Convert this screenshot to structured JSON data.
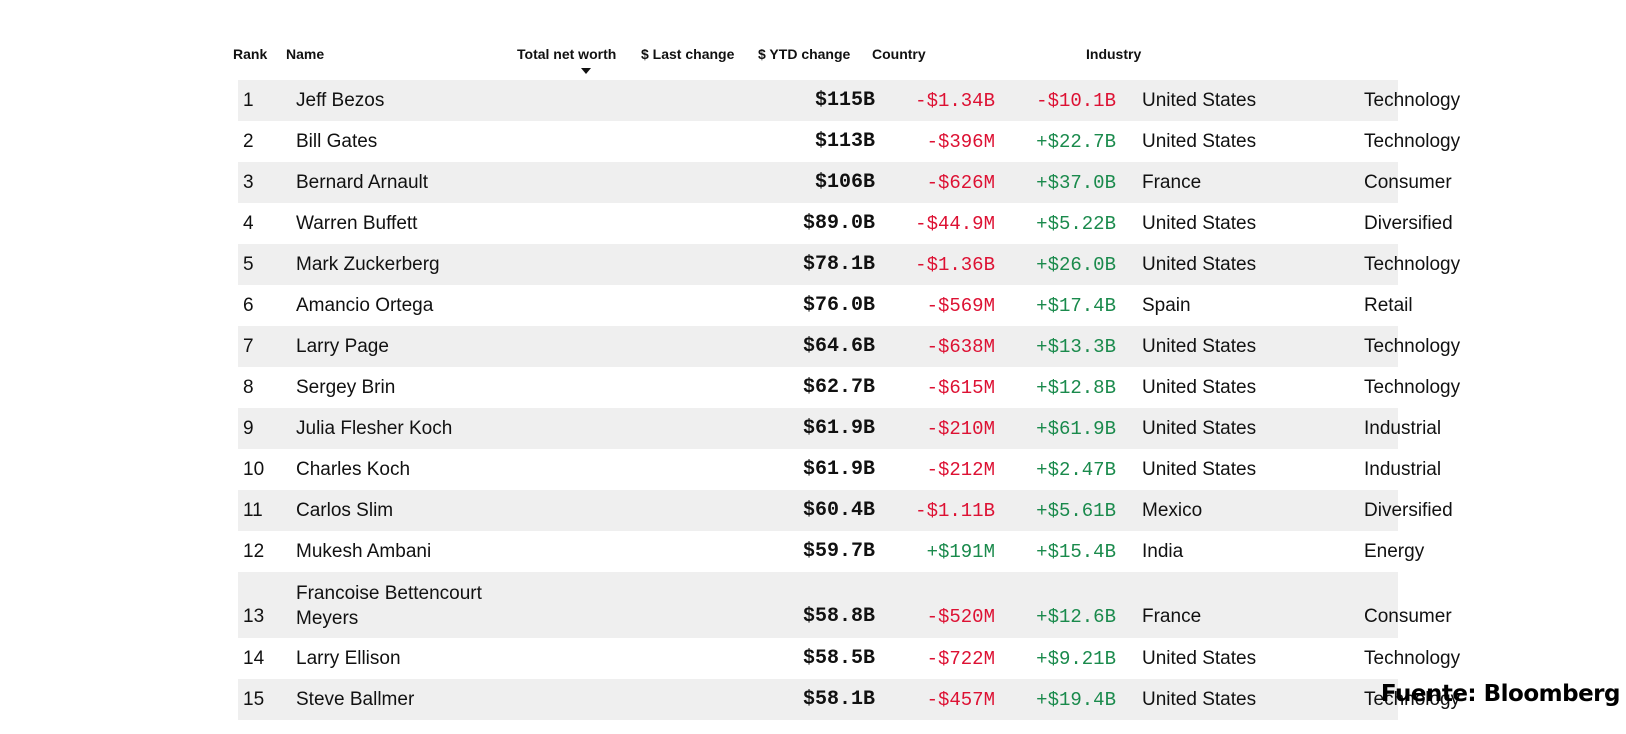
{
  "table": {
    "headers": {
      "rank": "Rank",
      "name": "Name",
      "net_worth": "Total net worth",
      "last_change": "$ Last change",
      "ytd_change": "$ YTD change",
      "country": "Country",
      "industry": "Industry"
    },
    "sorted_by": "Total net worth",
    "sort_direction": "descending",
    "rows": [
      {
        "rank": "1",
        "name": "Jeff Bezos",
        "net_worth": "$115B",
        "last_change": "-$1.34B",
        "ytd_change": "-$10.1B",
        "country": "United States",
        "industry": "Technology"
      },
      {
        "rank": "2",
        "name": "Bill Gates",
        "net_worth": "$113B",
        "last_change": "-$396M",
        "ytd_change": "+$22.7B",
        "country": "United States",
        "industry": "Technology"
      },
      {
        "rank": "3",
        "name": "Bernard Arnault",
        "net_worth": "$106B",
        "last_change": "-$626M",
        "ytd_change": "+$37.0B",
        "country": "France",
        "industry": "Consumer"
      },
      {
        "rank": "4",
        "name": "Warren Buffett",
        "net_worth": "$89.0B",
        "last_change": "-$44.9M",
        "ytd_change": "+$5.22B",
        "country": "United States",
        "industry": "Diversified"
      },
      {
        "rank": "5",
        "name": "Mark Zuckerberg",
        "net_worth": "$78.1B",
        "last_change": "-$1.36B",
        "ytd_change": "+$26.0B",
        "country": "United States",
        "industry": "Technology"
      },
      {
        "rank": "6",
        "name": "Amancio Ortega",
        "net_worth": "$76.0B",
        "last_change": "-$569M",
        "ytd_change": "+$17.4B",
        "country": "Spain",
        "industry": "Retail"
      },
      {
        "rank": "7",
        "name": "Larry Page",
        "net_worth": "$64.6B",
        "last_change": "-$638M",
        "ytd_change": "+$13.3B",
        "country": "United States",
        "industry": "Technology"
      },
      {
        "rank": "8",
        "name": "Sergey Brin",
        "net_worth": "$62.7B",
        "last_change": "-$615M",
        "ytd_change": "+$12.8B",
        "country": "United States",
        "industry": "Technology"
      },
      {
        "rank": "9",
        "name": "Julia Flesher Koch",
        "net_worth": "$61.9B",
        "last_change": "-$210M",
        "ytd_change": "+$61.9B",
        "country": "United States",
        "industry": "Industrial"
      },
      {
        "rank": "10",
        "name": "Charles Koch",
        "net_worth": "$61.9B",
        "last_change": "-$212M",
        "ytd_change": "+$2.47B",
        "country": "United States",
        "industry": "Industrial"
      },
      {
        "rank": "11",
        "name": "Carlos Slim",
        "net_worth": "$60.4B",
        "last_change": "-$1.11B",
        "ytd_change": "+$5.61B",
        "country": "Mexico",
        "industry": "Diversified"
      },
      {
        "rank": "12",
        "name": "Mukesh Ambani",
        "net_worth": "$59.7B",
        "last_change": "+$191M",
        "ytd_change": "+$15.4B",
        "country": "India",
        "industry": "Energy"
      },
      {
        "rank": "13",
        "name": "Francoise Bettencourt Meyers",
        "net_worth": "$58.8B",
        "last_change": "-$520M",
        "ytd_change": "+$12.6B",
        "country": "France",
        "industry": "Consumer"
      },
      {
        "rank": "14",
        "name": "Larry Ellison",
        "net_worth": "$58.5B",
        "last_change": "-$722M",
        "ytd_change": "+$9.21B",
        "country": "United States",
        "industry": "Technology"
      },
      {
        "rank": "15",
        "name": "Steve Ballmer",
        "net_worth": "$58.1B",
        "last_change": "-$457M",
        "ytd_change": "+$19.4B",
        "country": "United States",
        "industry": "Technology"
      }
    ]
  },
  "source_label": "Fuente: Bloomberg",
  "colors": {
    "negative": "#dd1133",
    "positive": "#1a8a4c",
    "row_shade": "#efefef"
  }
}
